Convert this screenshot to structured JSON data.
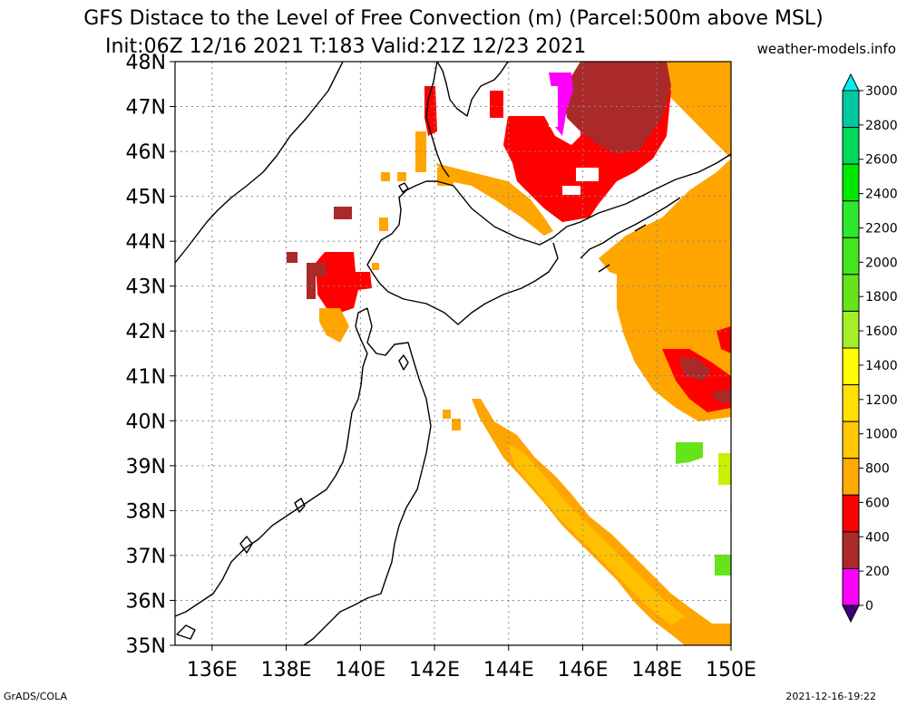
{
  "title_line1": "GFS Distace to the Level of Free Convection (m) (Parcel:500m above MSL)",
  "title_line2": "Init:06Z 12/16 2021 T:183 Valid:21Z 12/23 2021",
  "site": "weather-models.info",
  "footer_left": "GrADS/COLA",
  "footer_right": "2021-12-16-19:22",
  "map": {
    "lat_labels": [
      "48N",
      "47N",
      "46N",
      "45N",
      "44N",
      "43N",
      "42N",
      "41N",
      "40N",
      "39N",
      "38N",
      "37N",
      "36N",
      "35N"
    ],
    "lon_labels": [
      "136E",
      "138E",
      "140E",
      "142E",
      "144E",
      "146E",
      "148E",
      "150E"
    ],
    "lat_range": [
      35,
      48
    ],
    "lon_range": [
      135,
      150
    ]
  },
  "colorbar": {
    "labels": [
      "3000",
      "2800",
      "2600",
      "2400",
      "2200",
      "2000",
      "1800",
      "1600",
      "1400",
      "1200",
      "1000",
      "800",
      "600",
      "400",
      "200",
      "0"
    ],
    "colors": [
      "#00e6d2",
      "#00c8a0",
      "#00d85a",
      "#00e800",
      "#2ee82e",
      "#44e41e",
      "#66e41a",
      "#a6ef26",
      "#ffff00",
      "#ffe000",
      "#ffc800",
      "#ffaa00",
      "#ff0000",
      "#aa2a2a",
      "#ff00ff",
      "#3d007a"
    ],
    "top_color": "#00f0f0",
    "bottom_color": "#3d007a"
  },
  "colors": {
    "orange": "#ffa500",
    "light_orange": "#ffc000",
    "dark_orange": "#ff8c00",
    "red": "#ff0000",
    "brown": "#aa2a2a",
    "magenta": "#ff00ff",
    "green": "#66e41a",
    "yellow_green": "#c8f000"
  }
}
